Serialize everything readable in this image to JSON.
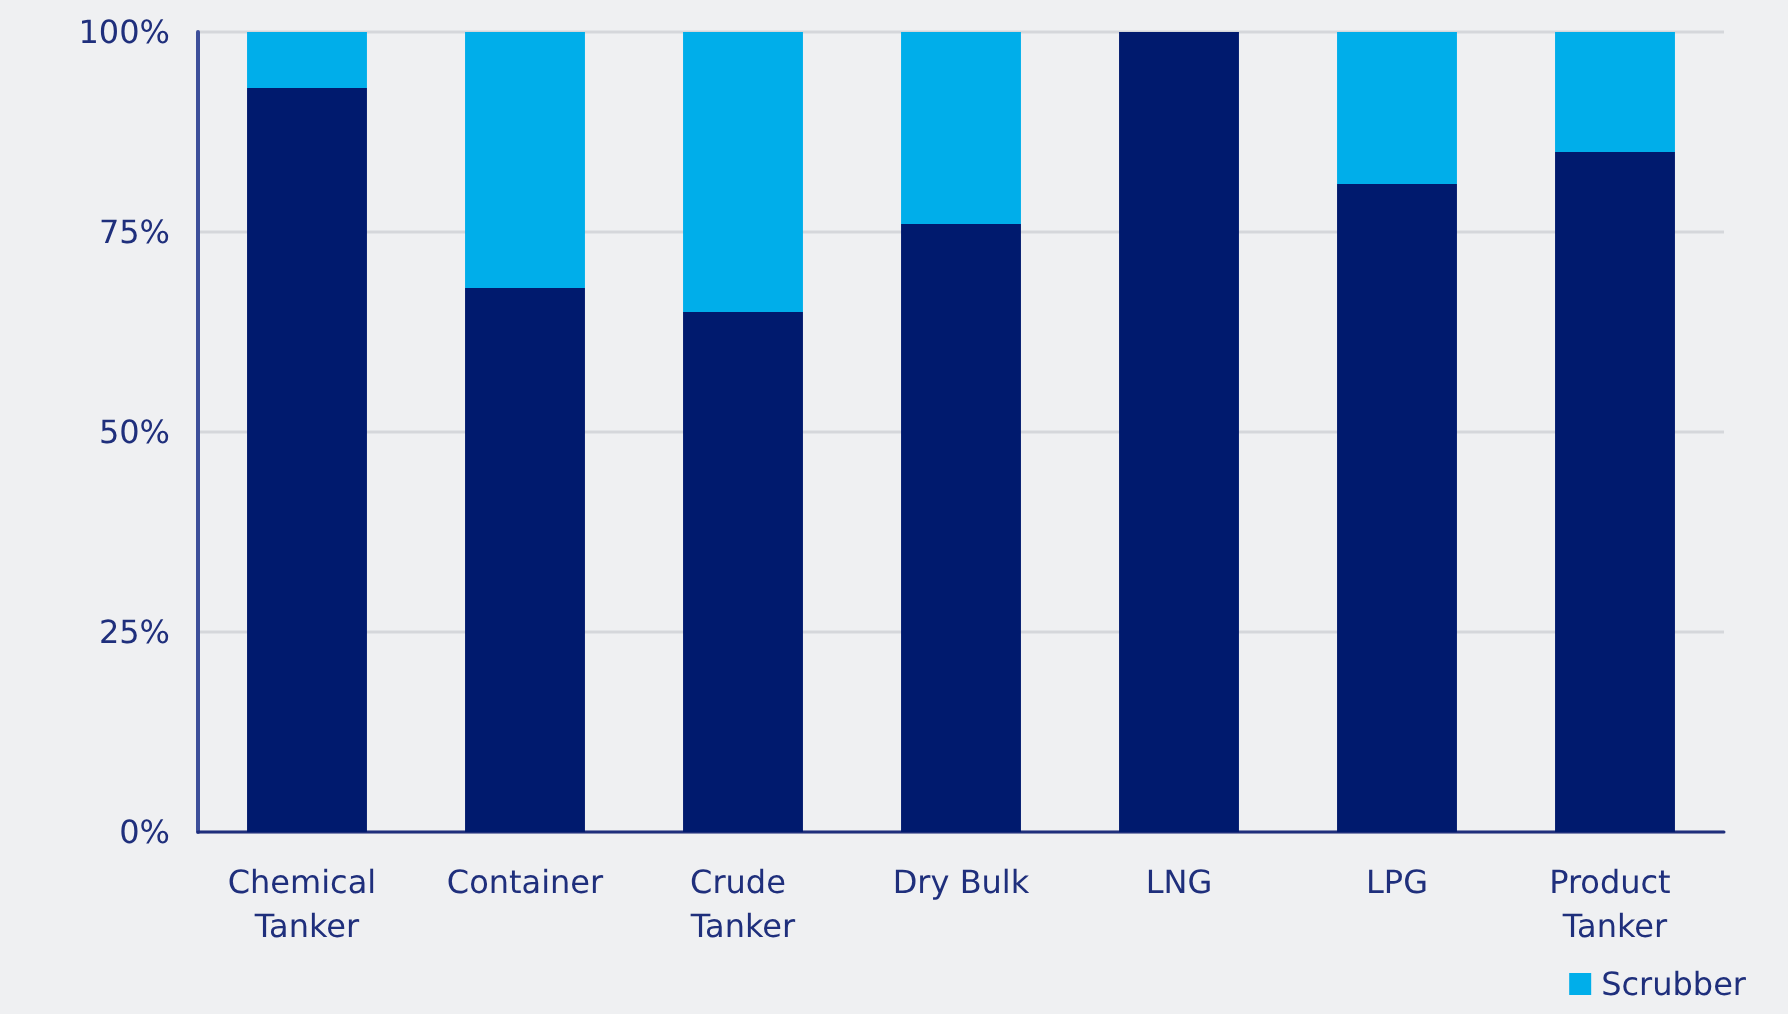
{
  "chart_data": {
    "type": "bar",
    "stacked": true,
    "categories": [
      "Chemical Tanker",
      "Container",
      "Crude Tanker",
      "Dry Bulk",
      "LNG",
      "LPG",
      "Product Tanker"
    ],
    "series": [
      {
        "color": "#001a6e",
        "values": [
          93,
          68,
          65,
          76,
          100,
          81,
          85
        ]
      },
      {
        "name": "Scrubber",
        "color": "#00aeea",
        "values": [
          7,
          32,
          35,
          24,
          0,
          19,
          15
        ]
      }
    ],
    "ylim": [
      0,
      100
    ],
    "yticks": [
      {
        "value": 0,
        "label": "0%"
      },
      {
        "value": 25,
        "label": "25%"
      },
      {
        "value": 50,
        "label": "50%"
      },
      {
        "value": 75,
        "label": "75%"
      },
      {
        "value": 100,
        "label": "100%"
      }
    ],
    "grid": "y",
    "legend": "bottom right"
  }
}
